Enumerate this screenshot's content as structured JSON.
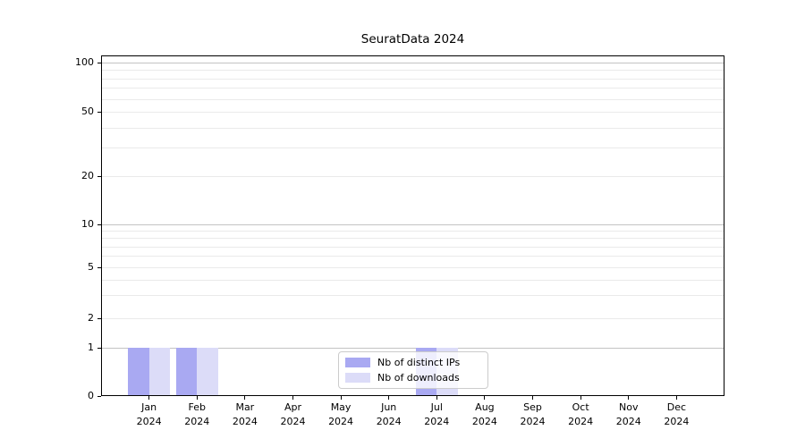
{
  "chart_data": {
    "type": "bar",
    "title": "SeuratData 2024",
    "x_tick_labels": [
      [
        "Jan",
        "2024"
      ],
      [
        "Feb",
        "2024"
      ],
      [
        "Mar",
        "2024"
      ],
      [
        "Apr",
        "2024"
      ],
      [
        "May",
        "2024"
      ],
      [
        "Jun",
        "2024"
      ],
      [
        "Jul",
        "2024"
      ],
      [
        "Aug",
        "2024"
      ],
      [
        "Sep",
        "2024"
      ],
      [
        "Oct",
        "2024"
      ],
      [
        "Nov",
        "2024"
      ],
      [
        "Dec",
        "2024"
      ]
    ],
    "series": [
      {
        "name": "Nb of distinct IPs",
        "color": "#a9a9f2",
        "values": [
          1,
          1,
          0,
          0,
          0,
          0,
          1,
          0,
          0,
          0,
          0,
          0
        ]
      },
      {
        "name": "Nb of downloads",
        "color": "#dcdcf8",
        "values": [
          1,
          1,
          0,
          0,
          0,
          0,
          1,
          0,
          0,
          0,
          0,
          0
        ]
      }
    ],
    "yscale": "symlog",
    "y_tick_values": [
      0,
      1,
      2,
      5,
      10,
      20,
      50,
      100
    ],
    "y_major_gridlines": [
      1,
      10,
      100
    ],
    "y_minor_gridlines": [
      2,
      3,
      4,
      5,
      6,
      7,
      8,
      9,
      20,
      30,
      40,
      50,
      60,
      70,
      80,
      90
    ],
    "ylim": [
      0,
      130
    ],
    "grid": "horizontal",
    "legend": {
      "entries": [
        "Nb of distinct IPs",
        "Nb of downloads"
      ],
      "position": "lower center inside"
    }
  },
  "colors": {
    "bar_distinct_ips": "#a9a9f2",
    "bar_downloads": "#dcdcf8",
    "major_grid": "#c3c3c3",
    "minor_grid": "#eaeaea",
    "axis": "#000000",
    "legend_border": "#cccccc",
    "legend_background": "rgba(255,255,255,0.8)"
  }
}
